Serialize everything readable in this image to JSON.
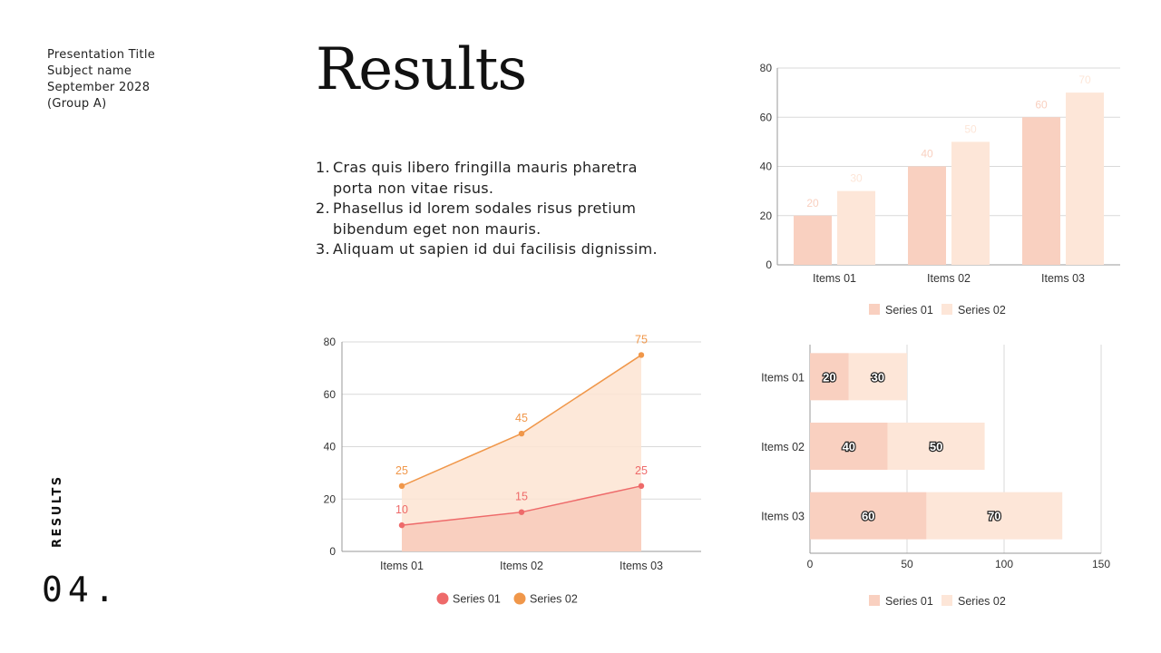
{
  "header": {
    "presentation_title": "Presentation Title",
    "subject": "Subject name",
    "date": "September 2028",
    "group": "(Group A)"
  },
  "slide": {
    "title": "Results",
    "section_label": "RESULTS",
    "page_number": "04."
  },
  "list": [
    {
      "num": "1.",
      "text": "Cras quis libero fringilla mauris pharetra porta non vitae risus."
    },
    {
      "num": "2.",
      "text": "Phasellus id lorem sodales risus pretium bibendum eget non mauris."
    },
    {
      "num": "3.",
      "text": "Aliquam ut sapien id dui facilisis dignissim."
    }
  ],
  "colors": {
    "series1_bar": "#f9d0c0",
    "series2_bar": "#fde6d8",
    "series1_line": "#ee6a6a",
    "series2_line": "#f0974a",
    "area1": "#f9cfbf",
    "area2": "#fde4d2",
    "grid": "#d9d9d9",
    "axis_text": "#333333"
  },
  "chart_data": [
    {
      "id": "column-chart",
      "type": "bar",
      "categories": [
        "Items 01",
        "Items 02",
        "Items 03"
      ],
      "series": [
        {
          "name": "Series 01",
          "values": [
            20,
            40,
            60
          ]
        },
        {
          "name": "Series 02",
          "values": [
            30,
            50,
            70
          ]
        }
      ],
      "yticks": [
        0,
        20,
        40,
        60,
        80
      ],
      "ylim": [
        0,
        80
      ],
      "legend": "bottom"
    },
    {
      "id": "area-chart",
      "type": "area",
      "categories": [
        "Items 01",
        "Items 02",
        "Items 03"
      ],
      "series": [
        {
          "name": "Series 01",
          "values": [
            10,
            15,
            25
          ]
        },
        {
          "name": "Series 02",
          "values": [
            25,
            45,
            75
          ]
        }
      ],
      "yticks": [
        0,
        20,
        40,
        60,
        80
      ],
      "ylim": [
        0,
        80
      ],
      "legend": "bottom"
    },
    {
      "id": "stacked-bar-chart",
      "type": "bar",
      "orientation": "horizontal-stacked",
      "categories": [
        "Items 01",
        "Items 02",
        "Items 03"
      ],
      "series": [
        {
          "name": "Series 01",
          "values": [
            20,
            40,
            60
          ]
        },
        {
          "name": "Series 02",
          "values": [
            30,
            50,
            70
          ]
        }
      ],
      "xticks": [
        0,
        50,
        100,
        150
      ],
      "xlim": [
        0,
        150
      ],
      "legend": "bottom"
    }
  ]
}
